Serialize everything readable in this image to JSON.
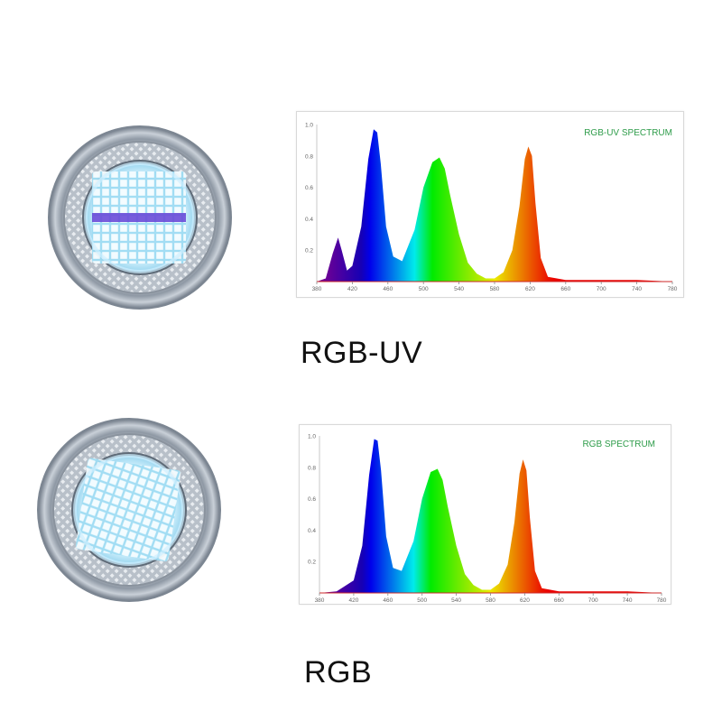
{
  "labels": {
    "rgb_uv": "RGB-UV",
    "rgb": "RGB"
  },
  "colors": {
    "spectrum_title": "#2e9c4a",
    "baseline": "#cc2a2a",
    "lamp_ring": "#9aa3ad",
    "lamp_glow": "#dff6ff",
    "uv_strip": "#6a4bd8"
  },
  "icons": {
    "rgb_uv_lamp": "led-lamp-rgb-uv-icon",
    "rgb_lamp": "led-lamp-rgb-icon"
  },
  "chart_data": [
    {
      "type": "area",
      "title": "RGB-UV SPECTRUM",
      "xlabel": "",
      "ylabel": "",
      "xlim": [
        380,
        780
      ],
      "ylim": [
        0,
        1.0
      ],
      "x_ticks": [
        380,
        420,
        460,
        500,
        540,
        580,
        620,
        660,
        700,
        740,
        780
      ],
      "y_ticks": [
        0.2,
        0.4,
        0.6,
        0.8,
        1.0
      ],
      "y_tick_labels": [
        "0.2",
        "0.4",
        "0.6",
        "0.8",
        "1.0"
      ],
      "grid": false,
      "color_fill": "wavelength-gradient",
      "x": [
        380,
        390,
        398,
        404,
        408,
        414,
        420,
        430,
        438,
        444,
        448,
        452,
        458,
        466,
        476,
        490,
        500,
        510,
        518,
        524,
        530,
        540,
        550,
        560,
        570,
        580,
        590,
        600,
        608,
        614,
        618,
        622,
        626,
        632,
        640,
        660,
        700,
        740,
        780
      ],
      "y": [
        0.0,
        0.02,
        0.18,
        0.28,
        0.2,
        0.07,
        0.1,
        0.35,
        0.78,
        0.97,
        0.95,
        0.75,
        0.35,
        0.16,
        0.13,
        0.33,
        0.6,
        0.76,
        0.79,
        0.72,
        0.55,
        0.3,
        0.12,
        0.05,
        0.02,
        0.02,
        0.06,
        0.2,
        0.48,
        0.78,
        0.86,
        0.8,
        0.5,
        0.15,
        0.03,
        0.01,
        0.01,
        0.01,
        0.0
      ]
    },
    {
      "type": "area",
      "title": "RGB SPECTRUM",
      "xlabel": "",
      "ylabel": "",
      "xlim": [
        380,
        780
      ],
      "ylim": [
        0,
        1.0
      ],
      "x_ticks": [
        380,
        420,
        460,
        500,
        540,
        580,
        620,
        660,
        700,
        740,
        780
      ],
      "y_ticks": [
        0.2,
        0.4,
        0.6,
        0.8,
        1.0
      ],
      "y_tick_labels": [
        "0.2",
        "0.4",
        "0.6",
        "0.8",
        "1.0"
      ],
      "grid": false,
      "color_fill": "wavelength-gradient",
      "x": [
        380,
        400,
        420,
        430,
        438,
        444,
        448,
        452,
        458,
        466,
        476,
        490,
        500,
        510,
        518,
        524,
        530,
        540,
        550,
        560,
        570,
        580,
        590,
        600,
        608,
        614,
        618,
        622,
        626,
        632,
        640,
        660,
        700,
        740,
        780
      ],
      "y": [
        0.0,
        0.01,
        0.08,
        0.3,
        0.75,
        0.98,
        0.97,
        0.78,
        0.36,
        0.16,
        0.14,
        0.33,
        0.6,
        0.77,
        0.79,
        0.72,
        0.55,
        0.3,
        0.12,
        0.05,
        0.02,
        0.02,
        0.06,
        0.18,
        0.45,
        0.76,
        0.85,
        0.78,
        0.48,
        0.14,
        0.03,
        0.01,
        0.01,
        0.01,
        0.0
      ]
    }
  ]
}
